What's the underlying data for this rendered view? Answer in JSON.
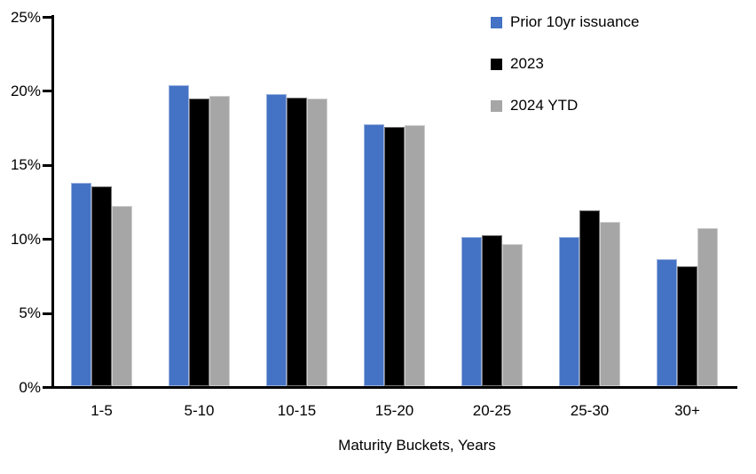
{
  "chart_data": {
    "type": "bar",
    "title": "",
    "xlabel": "Maturity Buckets, Years",
    "ylabel": "",
    "ylim": [
      0,
      25
    ],
    "y_tick_step": 5,
    "y_tick_labels": [
      "0%",
      "5%",
      "10%",
      "15%",
      "20%",
      "25%"
    ],
    "grid": false,
    "legend_position": "top-right",
    "categories": [
      "1-5",
      "5-10",
      "10-15",
      "15-20",
      "20-25",
      "25-30",
      "30+"
    ],
    "series": [
      {
        "name": "Prior 10yr issuance",
        "color": "#4472C4",
        "values": [
          13.7,
          20.3,
          19.7,
          17.7,
          10.1,
          10.1,
          8.6
        ]
      },
      {
        "name": "2023",
        "color": "#000000",
        "values": [
          13.5,
          19.4,
          19.5,
          17.5,
          10.2,
          11.9,
          8.1
        ]
      },
      {
        "name": "2024 YTD",
        "color": "#A6A6A6",
        "values": [
          12.2,
          19.6,
          19.4,
          17.6,
          9.6,
          11.1,
          10.7
        ]
      }
    ]
  }
}
